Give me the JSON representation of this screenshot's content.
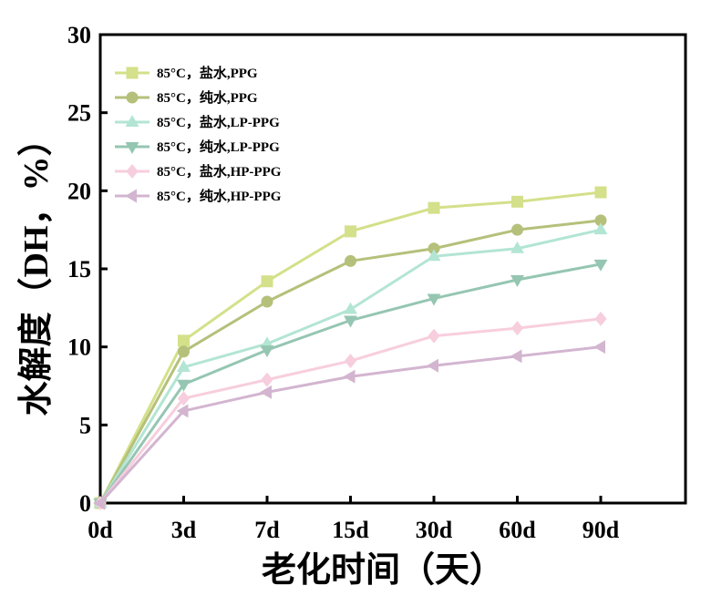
{
  "chart_data": {
    "type": "line",
    "xlabel": "老化时间（天）",
    "ylabel": "水解度（DH，%）",
    "categories": [
      "0d",
      "3d",
      "7d",
      "15d",
      "30d",
      "60d",
      "90d"
    ],
    "ylim": [
      0,
      30
    ],
    "yticks": [
      0,
      5,
      10,
      15,
      20,
      25,
      30
    ],
    "ytick_labels": [
      "0",
      "5",
      "10",
      "15",
      "20",
      "25",
      "30"
    ],
    "grid": false,
    "legend_position": "top-left",
    "series": [
      {
        "name": "85°C，盐水,PPG",
        "marker": "square",
        "color": "#d4e08a",
        "values": [
          0,
          10.4,
          14.2,
          17.4,
          18.9,
          19.3,
          19.9
        ]
      },
      {
        "name": "85°C，纯水,PPG",
        "marker": "circle",
        "color": "#b5c07a",
        "values": [
          0,
          9.7,
          12.9,
          15.5,
          16.3,
          17.5,
          18.1
        ]
      },
      {
        "name": "85°C，盐水,LP-PPG",
        "marker": "triangle-up",
        "color": "#b3e5d4",
        "values": [
          0,
          8.7,
          10.2,
          12.4,
          15.8,
          16.3,
          17.5
        ]
      },
      {
        "name": "85°C，纯水,LP-PPG",
        "marker": "triangle-down",
        "color": "#95c6b2",
        "values": [
          0,
          7.6,
          9.8,
          11.7,
          13.1,
          14.3,
          15.3
        ]
      },
      {
        "name": "85°C，盐水,HP-PPG",
        "marker": "diamond",
        "color": "#f7cedd",
        "values": [
          0,
          6.7,
          7.9,
          9.1,
          10.7,
          11.2,
          11.8
        ]
      },
      {
        "name": "85°C，纯水,HP-PPG",
        "marker": "triangle-left",
        "color": "#d3b5d0",
        "values": [
          0,
          5.9,
          7.1,
          8.1,
          8.8,
          9.4,
          10.0
        ]
      }
    ]
  }
}
